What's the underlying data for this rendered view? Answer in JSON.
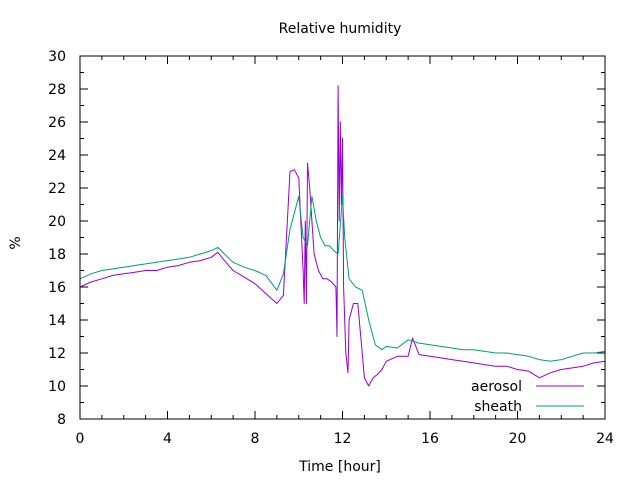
{
  "chart_data": {
    "type": "line",
    "title": "Relative humidity",
    "xlabel": "Time [hour]",
    "ylabel": "%",
    "xlim": [
      0,
      24
    ],
    "ylim": [
      8,
      30
    ],
    "xticks": [
      0,
      4,
      8,
      12,
      16,
      20,
      24
    ],
    "yticks": [
      8,
      10,
      12,
      14,
      16,
      18,
      20,
      22,
      24,
      26,
      28,
      30
    ],
    "x_minor_step": 1,
    "y_minor_step": 1,
    "grid": false,
    "legend_position": "bottom-right",
    "series": [
      {
        "name": "aerosol",
        "color": "#9400d3",
        "x": [
          0,
          0.5,
          1,
          1.5,
          2,
          2.5,
          3,
          3.5,
          4,
          4.5,
          5,
          5.5,
          6,
          6.3,
          6.6,
          7,
          7.5,
          8,
          8.5,
          9,
          9.3,
          9.6,
          9.8,
          10.0,
          10.2,
          10.25,
          10.3,
          10.35,
          10.4,
          10.5,
          10.7,
          10.9,
          11.1,
          11.3,
          11.5,
          11.7,
          11.75,
          11.8,
          11.85,
          11.9,
          11.95,
          12.0,
          12.05,
          12.15,
          12.25,
          12.3,
          12.5,
          12.7,
          12.9,
          13.0,
          13.2,
          13.4,
          13.6,
          13.8,
          14.0,
          14.5,
          15.0,
          15.2,
          15.5,
          16,
          16.5,
          17,
          17.5,
          18,
          18.5,
          19,
          19.5,
          20,
          20.5,
          21,
          21.5,
          22,
          22.5,
          23,
          23.5,
          24
        ],
        "values": [
          16.0,
          16.3,
          16.5,
          16.7,
          16.8,
          16.9,
          17.0,
          17.0,
          17.2,
          17.3,
          17.5,
          17.6,
          17.8,
          18.1,
          17.6,
          17.0,
          16.6,
          16.2,
          15.6,
          15.0,
          15.5,
          23.0,
          23.1,
          22.6,
          17.0,
          15.0,
          20.0,
          15.0,
          23.5,
          22.0,
          18.0,
          17.0,
          16.5,
          16.5,
          16.3,
          16.0,
          13.0,
          28.2,
          20.0,
          26.0,
          21.0,
          25.0,
          16.0,
          12.0,
          10.8,
          14.0,
          15.0,
          15.0,
          12.0,
          10.5,
          10.0,
          10.5,
          10.7,
          11.0,
          11.5,
          11.8,
          11.8,
          12.9,
          11.9,
          11.8,
          11.7,
          11.6,
          11.5,
          11.4,
          11.3,
          11.2,
          11.2,
          11.0,
          10.9,
          10.5,
          10.8,
          11.0,
          11.1,
          11.2,
          11.4,
          11.5
        ]
      },
      {
        "name": "sheath",
        "color": "#009e73",
        "x": [
          0,
          0.5,
          1,
          1.5,
          2,
          2.5,
          3,
          3.5,
          4,
          4.5,
          5,
          5.5,
          6,
          6.3,
          6.6,
          7,
          7.5,
          8,
          8.5,
          9,
          9.3,
          9.6,
          9.8,
          10.0,
          10.2,
          10.4,
          10.6,
          10.8,
          11.0,
          11.2,
          11.4,
          11.6,
          11.8,
          12.0,
          12.1,
          12.3,
          12.6,
          12.9,
          13.2,
          13.5,
          13.8,
          14.0,
          14.5,
          15.0,
          15.5,
          16,
          16.5,
          17,
          17.5,
          18,
          18.5,
          19,
          19.5,
          20,
          20.5,
          21,
          21.5,
          22,
          22.5,
          23,
          23.5,
          24
        ],
        "values": [
          16.5,
          16.8,
          17.0,
          17.1,
          17.2,
          17.3,
          17.4,
          17.5,
          17.6,
          17.7,
          17.8,
          18.0,
          18.2,
          18.4,
          18.0,
          17.5,
          17.2,
          17.0,
          16.7,
          15.8,
          16.8,
          19.5,
          20.5,
          21.5,
          19.0,
          18.5,
          21.5,
          20.0,
          19.0,
          18.5,
          18.5,
          18.2,
          18.0,
          21.5,
          19.0,
          16.5,
          16.0,
          15.8,
          14.0,
          12.5,
          12.2,
          12.4,
          12.3,
          12.8,
          12.6,
          12.5,
          12.4,
          12.3,
          12.2,
          12.2,
          12.1,
          12.0,
          12.0,
          11.9,
          11.8,
          11.6,
          11.5,
          11.6,
          11.8,
          12.0,
          12.0,
          12.1
        ]
      }
    ]
  }
}
